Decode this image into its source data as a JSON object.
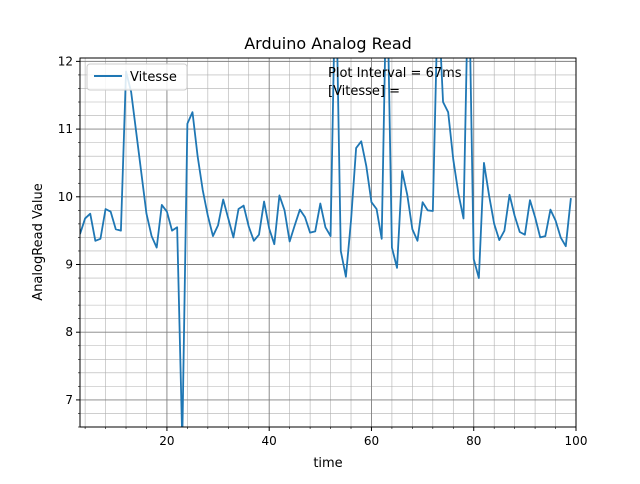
{
  "chart_data": {
    "type": "line",
    "title": "Arduino Analog Read",
    "xlabel": "time",
    "ylabel": "AnalogRead Value",
    "xlim": [
      3,
      100
    ],
    "ylim": [
      6.6,
      12.05
    ],
    "grid": true,
    "minor_grid": true,
    "legend_position": "top-left",
    "x_ticks": [
      20,
      40,
      60,
      80,
      100
    ],
    "y_ticks": [
      7,
      8,
      9,
      10,
      11,
      12
    ],
    "annotations": [
      "Plot Interval = 67ms",
      "[Vitesse] ="
    ],
    "series": [
      {
        "name": "Vitesse",
        "color": "#1f77b4",
        "x": [
          3,
          4,
          5,
          6,
          7,
          8,
          9,
          10,
          11,
          12,
          13,
          14,
          15,
          16,
          17,
          18,
          19,
          20,
          21,
          22,
          23,
          24,
          25,
          26,
          27,
          28,
          29,
          30,
          31,
          32,
          33,
          34,
          35,
          36,
          37,
          38,
          39,
          40,
          41,
          42,
          43,
          44,
          45,
          46,
          47,
          48,
          49,
          50,
          51,
          52,
          53,
          54,
          55,
          56,
          57,
          58,
          59,
          60,
          61,
          62,
          63,
          64,
          65,
          66,
          67,
          68,
          69,
          70,
          71,
          72,
          73,
          74,
          75,
          76,
          77,
          78,
          79,
          80,
          81,
          82,
          83,
          84,
          85,
          86,
          87,
          88,
          89,
          90,
          91,
          92,
          93,
          94,
          95,
          96,
          97,
          98,
          99
        ],
        "values": [
          9.45,
          9.68,
          9.75,
          9.35,
          9.38,
          9.82,
          9.78,
          9.52,
          9.5,
          11.85,
          11.55,
          10.95,
          10.35,
          9.75,
          9.42,
          9.25,
          9.88,
          9.78,
          9.5,
          9.55,
          6.4,
          11.08,
          11.25,
          10.6,
          10.1,
          9.72,
          9.42,
          9.58,
          9.96,
          9.68,
          9.4,
          9.82,
          9.87,
          9.56,
          9.35,
          9.44,
          9.93,
          9.53,
          9.3,
          10.02,
          9.8,
          9.34,
          9.58,
          9.81,
          9.7,
          9.47,
          9.49,
          9.9,
          9.55,
          9.42,
          13.5,
          9.2,
          8.82,
          9.65,
          10.72,
          10.82,
          10.45,
          9.92,
          9.82,
          9.38,
          13.5,
          9.25,
          8.95,
          10.38,
          10.03,
          9.52,
          9.35,
          9.92,
          9.8,
          9.79,
          13.0,
          11.4,
          11.25,
          10.55,
          10.05,
          9.68,
          13.5,
          9.08,
          8.8,
          10.5,
          10.02,
          9.6,
          9.36,
          9.5,
          10.03,
          9.72,
          9.48,
          9.44,
          9.95,
          9.7,
          9.4,
          9.42,
          9.81,
          9.65,
          9.4,
          9.27,
          9.98
        ]
      }
    ]
  }
}
